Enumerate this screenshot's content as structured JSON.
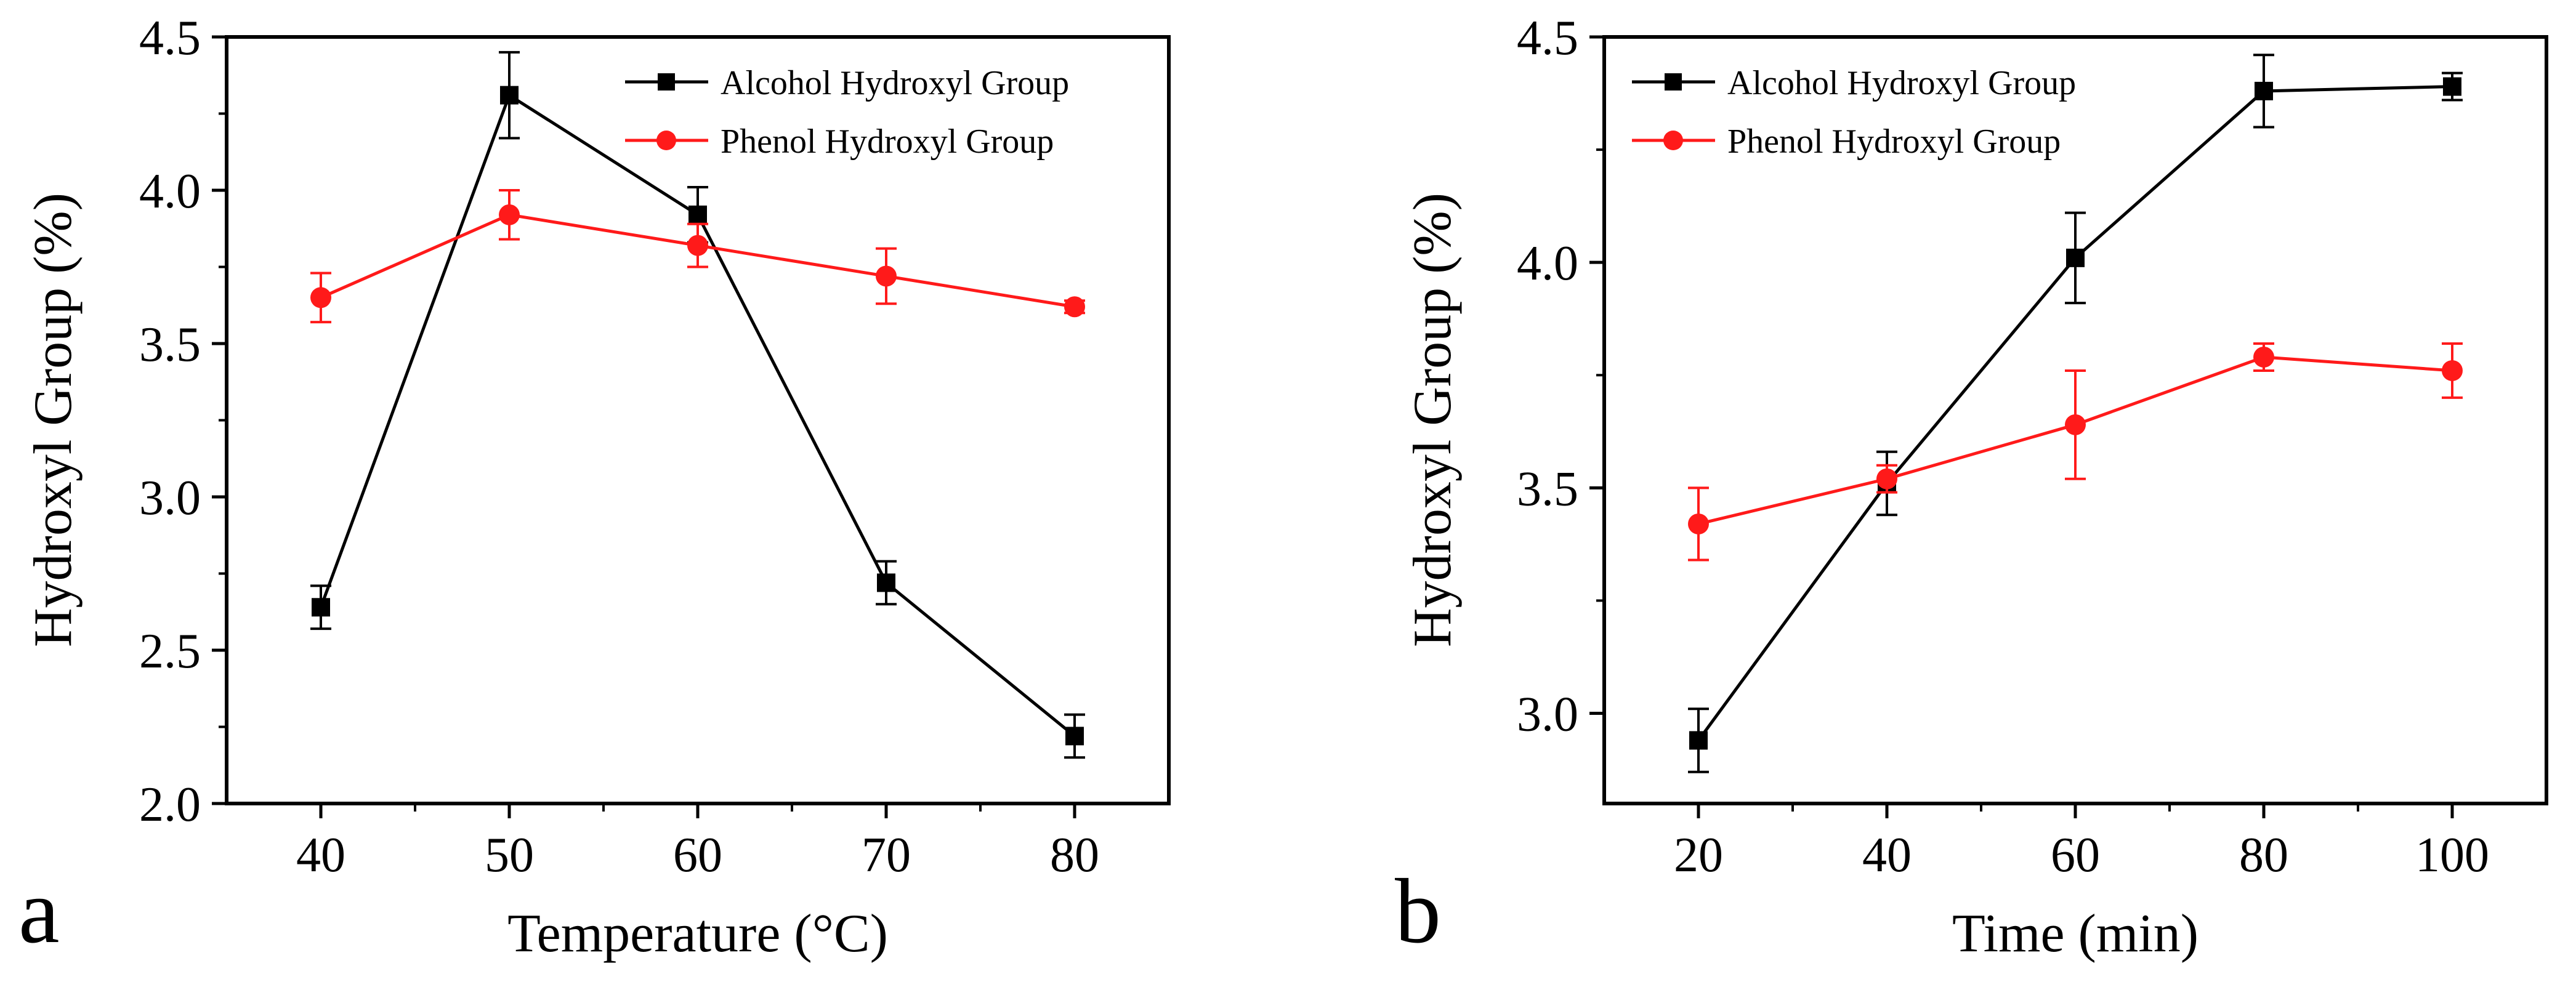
{
  "figure": {
    "panels": [
      "a",
      "b"
    ]
  },
  "chart_data": [
    {
      "type": "line",
      "panel_label": "a",
      "title": "",
      "xlabel": "Temperature (°C)",
      "ylabel": "Hydroxyl Group (%)",
      "xlim": [
        35,
        85
      ],
      "ylim": [
        2.0,
        4.5
      ],
      "xticks": [
        40,
        50,
        60,
        70,
        80
      ],
      "xtick_labels": [
        "40",
        "50",
        "60",
        "70",
        "80"
      ],
      "yticks": [
        2.0,
        2.5,
        3.0,
        3.5,
        4.0,
        4.5
      ],
      "ytick_labels": [
        "2.0",
        "2.5",
        "3.0",
        "3.5",
        "4.0",
        "4.5"
      ],
      "grid": false,
      "legend_position": "top-right",
      "x": [
        40,
        50,
        60,
        70,
        80
      ],
      "series": [
        {
          "name": "Alcohol Hydroxyl Group",
          "color": "#000000",
          "marker": "square",
          "values": [
            2.64,
            4.31,
            3.92,
            2.72,
            2.22
          ],
          "errors": [
            0.07,
            0.14,
            0.09,
            0.07,
            0.07
          ]
        },
        {
          "name": "Phenol Hydroxyl Group",
          "color": "#ff1a1a",
          "marker": "circle",
          "values": [
            3.65,
            3.92,
            3.82,
            3.72,
            3.62
          ],
          "errors": [
            0.08,
            0.08,
            0.07,
            0.09,
            0.02
          ]
        }
      ]
    },
    {
      "type": "line",
      "panel_label": "b",
      "title": "",
      "xlabel": "Time (min)",
      "ylabel": "Hydroxyl Group (%)",
      "xlim": [
        10,
        110
      ],
      "ylim": [
        2.8,
        4.5
      ],
      "xticks": [
        20,
        40,
        60,
        80,
        100
      ],
      "xtick_labels": [
        "20",
        "40",
        "60",
        "80",
        "100"
      ],
      "yticks": [
        3.0,
        3.5,
        4.0,
        4.5
      ],
      "ytick_labels": [
        "3.0",
        "3.5",
        "4.0",
        "4.5"
      ],
      "grid": false,
      "legend_position": "top-left",
      "x": [
        20,
        40,
        60,
        80,
        100
      ],
      "series": [
        {
          "name": "Alcohol Hydroxyl Group",
          "color": "#000000",
          "marker": "square",
          "values": [
            2.94,
            3.51,
            4.01,
            4.38,
            4.39
          ],
          "errors": [
            0.07,
            0.07,
            0.1,
            0.08,
            0.03
          ]
        },
        {
          "name": "Phenol Hydroxyl Group",
          "color": "#ff1a1a",
          "marker": "circle",
          "values": [
            3.42,
            3.52,
            3.64,
            3.79,
            3.76
          ],
          "errors": [
            0.08,
            0.03,
            0.12,
            0.03,
            0.06
          ]
        }
      ]
    }
  ]
}
